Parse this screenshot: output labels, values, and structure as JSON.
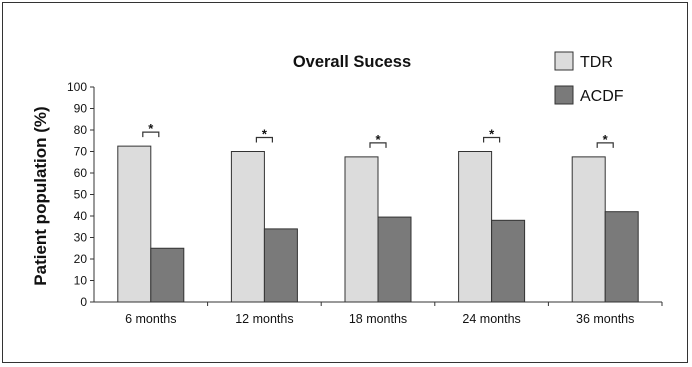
{
  "chart_data": {
    "type": "bar",
    "title": "Overall Sucess",
    "xlabel": "",
    "ylabel": "Patient population (%)",
    "ylim": [
      0,
      100
    ],
    "yticks": [
      0,
      10,
      20,
      30,
      40,
      50,
      60,
      70,
      80,
      90,
      100
    ],
    "categories": [
      "6 months",
      "12 months",
      "18 months",
      "24 months",
      "36 months"
    ],
    "series": [
      {
        "name": "TDR",
        "color": "#dcdcdc",
        "values": [
          72.5,
          70,
          67.5,
          70,
          67.5
        ]
      },
      {
        "name": "ACDF",
        "color": "#7a7a7a",
        "values": [
          25,
          34,
          39.5,
          38,
          42
        ]
      }
    ],
    "significance_marker": "*",
    "grid": false,
    "legend_position": "top-right"
  }
}
